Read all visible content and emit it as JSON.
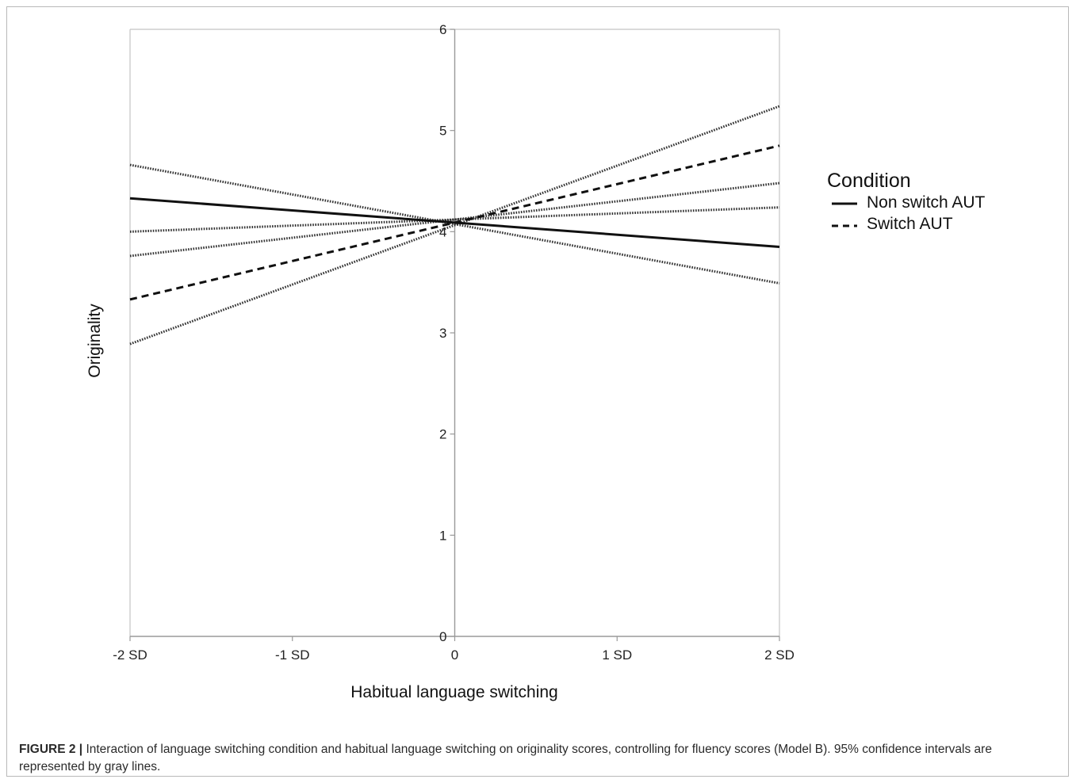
{
  "chart_data": {
    "type": "line",
    "x": [
      -2,
      2
    ],
    "xticks": [
      {
        "value": -2,
        "label": "-2",
        "unit": "SD"
      },
      {
        "value": -1,
        "label": "-1",
        "unit": "SD"
      },
      {
        "value": 0,
        "label": "0",
        "unit": ""
      },
      {
        "value": 1,
        "label": "1",
        "unit": "SD"
      },
      {
        "value": 2,
        "label": "2",
        "unit": "SD"
      }
    ],
    "yticks": [
      0,
      1,
      2,
      3,
      4,
      5,
      6
    ],
    "xlim": [
      -2,
      2
    ],
    "ylim": [
      0,
      6
    ],
    "xlabel": "Habitual language switching",
    "ylabel": "Originality",
    "legend": {
      "title": "Condition",
      "position": "right"
    },
    "series": [
      {
        "name": "Non switch AUT",
        "style": "solid",
        "values": [
          4.33,
          3.85
        ]
      },
      {
        "name": "Switch AUT",
        "style": "dashed",
        "values": [
          3.33,
          4.85
        ]
      }
    ],
    "confidence_bands": [
      {
        "style": "dotted",
        "values": [
          4.66,
          3.49
        ]
      },
      {
        "style": "dotted",
        "values": [
          4.0,
          4.24
        ]
      },
      {
        "style": "dotted",
        "values": [
          3.76,
          4.48
        ]
      },
      {
        "style": "dotted",
        "values": [
          2.89,
          5.24
        ]
      }
    ],
    "grid": false
  },
  "caption": {
    "label": "FIGURE 2 |",
    "text": "Interaction of language switching condition and habitual language switching on originality scores, controlling for fluency scores (Model B). 95% confidence intervals are represented by gray lines."
  }
}
